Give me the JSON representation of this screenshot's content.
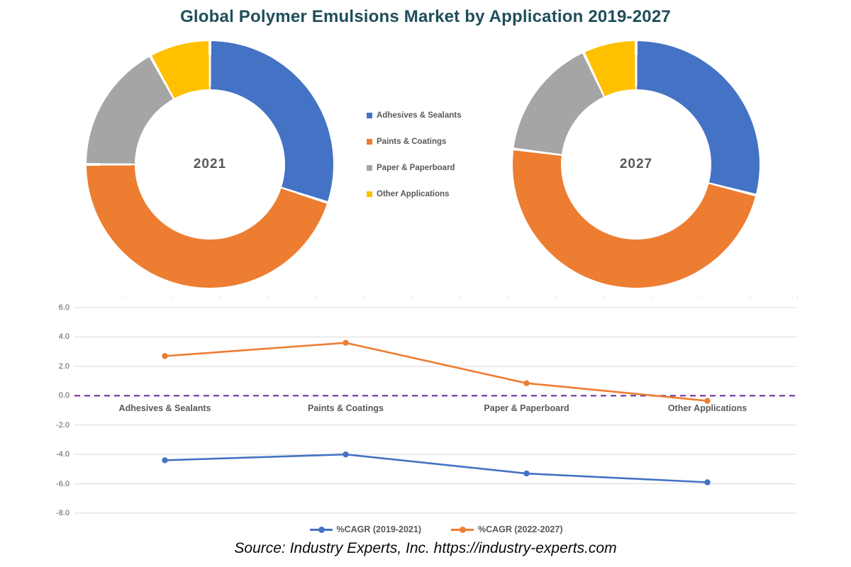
{
  "title": "Global Polymer Emulsions Market by Application 2019-2027",
  "source": "Source: Industry Experts, Inc. https://industry-experts.com",
  "palette": {
    "blue": "#4472C4",
    "orange": "#ED7D31",
    "gray": "#A5A5A5",
    "yellow": "#FFC000",
    "zero_line_purple": "#7030A0",
    "grid": "#D9D9D9",
    "tick": "#E2E2E2",
    "axis_text": "#595959",
    "title_teal": "#1F4E5A"
  },
  "applications": [
    "Adhesives & Sealants",
    "Paints & Coatings",
    "Paper & Paperboard",
    "Other Applications"
  ],
  "donut_legend": {
    "items": [
      {
        "label": "Adhesives & Sealants",
        "color": "#4472C4"
      },
      {
        "label": "Paints & Coatings",
        "color": "#ED7D31"
      },
      {
        "label": "Paper & Paperboard",
        "color": "#A5A5A5"
      },
      {
        "label": "Other Applications",
        "color": "#FFC000"
      }
    ]
  },
  "chart_data": [
    {
      "type": "pie",
      "subtype": "donut",
      "center_label": "2021",
      "labels": [
        "Adhesives & Sealants",
        "Paints & Coatings",
        "Paper & Paperboard",
        "Other Applications"
      ],
      "values_pct": [
        30,
        45,
        17,
        8
      ],
      "colors": [
        "#4472C4",
        "#ED7D31",
        "#A5A5A5",
        "#FFC000"
      ],
      "start_angle_deg": 0,
      "direction": "clockwise"
    },
    {
      "type": "pie",
      "subtype": "donut",
      "center_label": "2027",
      "labels": [
        "Adhesives & Sealants",
        "Paints & Coatings",
        "Paper & Paperboard",
        "Other Applications"
      ],
      "values_pct": [
        29,
        48,
        16,
        7
      ],
      "colors": [
        "#4472C4",
        "#ED7D31",
        "#A5A5A5",
        "#FFC000"
      ],
      "start_angle_deg": 0,
      "direction": "clockwise"
    },
    {
      "type": "line",
      "categories": [
        "Adhesives & Sealants",
        "Paints & Coatings",
        "Paper & Paperboard",
        "Other Applications"
      ],
      "series": [
        {
          "name": "%CAGR (2019-2021)",
          "color": "#4472C4",
          "values": [
            -4.4,
            -4.0,
            -5.3,
            -5.9
          ]
        },
        {
          "name": "%CAGR (2022-2027)",
          "color": "#ED7D31",
          "values": [
            2.7,
            3.6,
            0.85,
            -0.35
          ]
        }
      ],
      "ylim": [
        -8,
        6
      ],
      "yticks": [
        {
          "value": 6,
          "label": "6.0"
        },
        {
          "value": 4,
          "label": "4.0"
        },
        {
          "value": 2,
          "label": "2.0"
        },
        {
          "value": 0,
          "label": "0.0"
        },
        {
          "value": -2,
          "label": "-2.0"
        },
        {
          "value": -4,
          "label": "-4.0"
        },
        {
          "value": -6,
          "label": "-6.0"
        },
        {
          "value": -8,
          "label": "-8.0"
        }
      ],
      "grid": true,
      "zero_line": {
        "style": "dashed",
        "color": "#7030A0"
      },
      "legend_position": "bottom"
    }
  ]
}
